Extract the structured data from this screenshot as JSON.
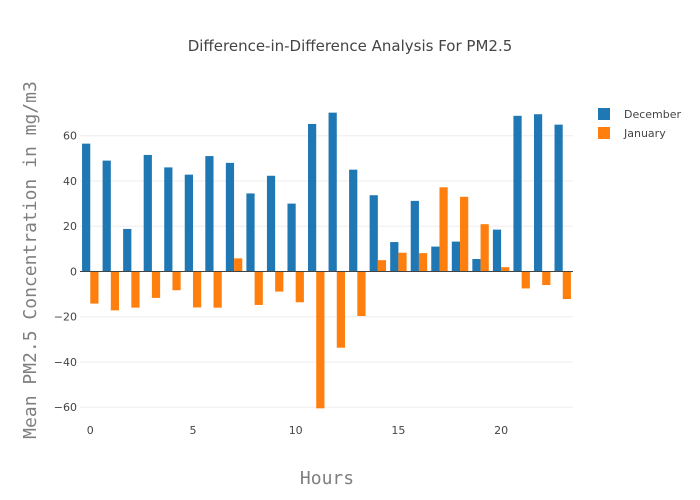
{
  "chart_data": {
    "type": "bar",
    "title": "Difference-in-Difference Analysis For PM2.5",
    "xlabel": "Hours",
    "ylabel": "Mean PM2.5 Concentration in mg/m3",
    "x": [
      0,
      1,
      2,
      3,
      4,
      5,
      6,
      7,
      8,
      9,
      10,
      11,
      12,
      13,
      14,
      15,
      16,
      17,
      18,
      19,
      20,
      21,
      22,
      23
    ],
    "series": [
      {
        "name": "December",
        "color": "#1f77b4",
        "values": [
          56.5,
          49,
          18.8,
          51.5,
          46,
          42.8,
          51,
          48,
          34.5,
          42.3,
          30,
          65.2,
          70.2,
          45,
          33.7,
          13,
          31.2,
          11,
          13.2,
          5.5,
          18.5,
          68.8,
          69.5,
          64.9
        ]
      },
      {
        "name": "January",
        "color": "#ff7f0e",
        "values": [
          -14.2,
          -17.2,
          -16,
          -11.7,
          -8.3,
          -15.9,
          -16,
          5.8,
          -14.8,
          -8.9,
          -13.6,
          -60.5,
          -33.7,
          -19.7,
          5,
          8.3,
          8.1,
          37.2,
          33,
          20.9,
          1.9,
          -7.5,
          -6,
          -12.2
        ]
      }
    ],
    "xlim": [
      -0.5,
      23.5
    ],
    "ylim": [
      -63,
      78
    ],
    "x_ticks": [
      0,
      5,
      10,
      15,
      20
    ],
    "y_ticks": [
      -60,
      -40,
      -20,
      0,
      20,
      40,
      60
    ],
    "grid": true,
    "legend_position": "top-right"
  }
}
